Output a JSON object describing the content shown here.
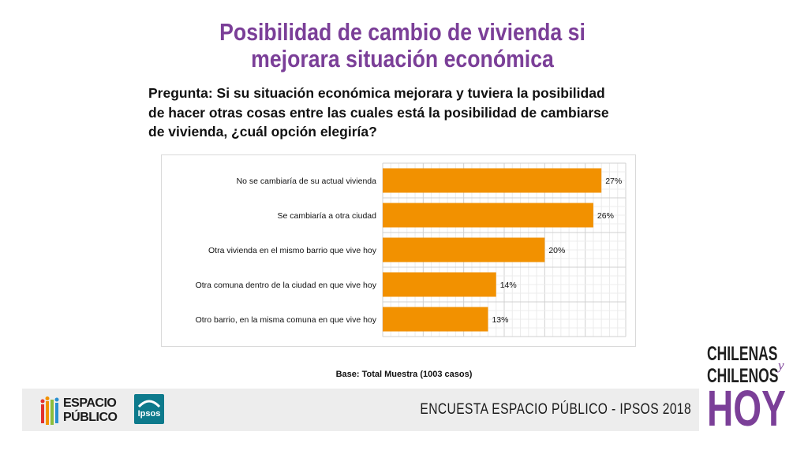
{
  "slide": {
    "title_line1": "Posibilidad de cambio de vivienda si",
    "title_line2": "mejorara situación económica",
    "question_line1": "Pregunta: Si su situación económica mejorara y tuviera la posibilidad",
    "question_line2": "de hacer otras cosas entre las cuales está la posibilidad de cambiarse",
    "question_line3": "de vivienda, ¿cuál opción elegiría?",
    "base_note": "Base: Total Muestra (1003 casos)"
  },
  "footer": {
    "logo_line1": "ESPACIO",
    "logo_line2": "PÚBLICO",
    "ipsos_label": "Ipsos",
    "survey_label": "ENCUESTA ESPACIO PÚBLICO - IPSOS 2018"
  },
  "brand": {
    "line1": "CHILENAS",
    "y": "y",
    "line2": "CHILENOS",
    "line3": "HOY"
  },
  "colors": {
    "bar": "#f29100",
    "title": "#7b3f98",
    "ipsos": "#0d7a8c"
  },
  "chart_data": {
    "type": "bar",
    "orientation": "horizontal",
    "categories": [
      "No se cambiaría de su actual vivienda",
      "Se cambiaría a otra ciudad",
      "Otra vivienda en el mismo barrio que vive hoy",
      "Otra comuna dentro de la ciudad en que vive hoy",
      "Otro barrio, en la misma comuna en que vive hoy"
    ],
    "values": [
      27,
      26,
      20,
      14,
      13
    ],
    "value_labels": [
      "27%",
      "26%",
      "20%",
      "14%",
      "13%"
    ],
    "xlim": [
      0,
      30
    ],
    "grid": true,
    "legend": "none"
  }
}
